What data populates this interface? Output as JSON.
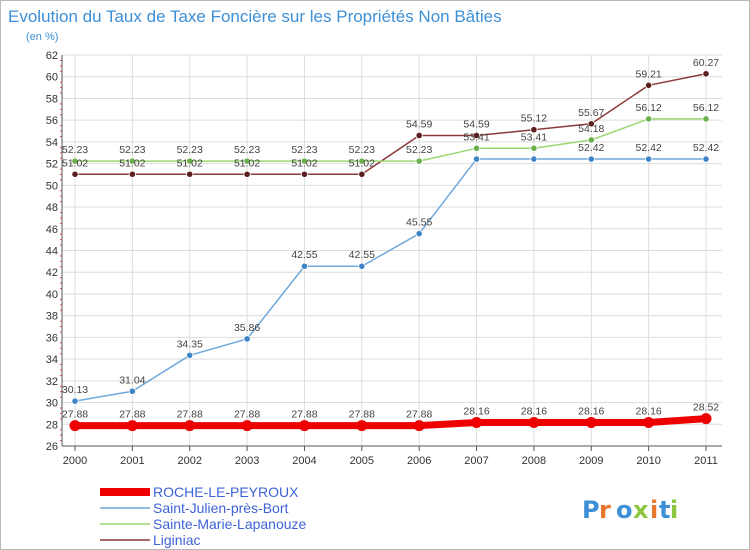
{
  "header": {
    "title": "Evolution du Taux de Taxe Foncière sur les Propriétés Non Bâties",
    "subtitle": "(en %)"
  },
  "logo": {
    "text": "Proxiti",
    "colors": [
      "#3d8fd6",
      "#e8762b",
      "#3d8fd6",
      "#8cc63f",
      "#e8762b",
      "#3d8fd6",
      "#8cc63f"
    ]
  },
  "chart_data": {
    "type": "line",
    "title": "Evolution du Taux de Taxe Foncière sur les Propriétés Non Bâties",
    "subtitle": "(en %)",
    "x": [
      "2000",
      "2001",
      "2002",
      "2003",
      "2004",
      "2005",
      "2006",
      "2007",
      "2008",
      "2009",
      "2010",
      "2011"
    ],
    "ylim": [
      26,
      62
    ],
    "yticks": [
      26,
      28,
      30,
      32,
      34,
      36,
      38,
      40,
      42,
      44,
      46,
      48,
      50,
      52,
      54,
      56,
      58,
      60,
      62
    ],
    "grid": true,
    "legend_position": "bottom-left",
    "series": [
      {
        "name": "ROCHE-LE-PEYROUX",
        "color": "#ee0000",
        "values": [
          27.88,
          27.88,
          27.88,
          27.88,
          27.88,
          27.88,
          27.88,
          28.16,
          28.16,
          28.16,
          28.16,
          28.52
        ],
        "labels": [
          "27.88",
          "27.88",
          "27.88",
          "27.88",
          "27.88",
          "27.88",
          "27.88",
          "28.16",
          "28.16",
          "28.16",
          "28.16",
          "28.52"
        ]
      },
      {
        "name": "Saint-Julien-près-Bort",
        "color": "#6fa8dc",
        "marker_color": "#3d85c6",
        "values": [
          30.13,
          31.04,
          34.35,
          35.86,
          42.55,
          42.55,
          45.55,
          52.42,
          52.42,
          52.42,
          52.42,
          52.42
        ],
        "labels": [
          "30.13",
          "31.04",
          "34.35",
          "35.86",
          "42.55",
          "42.55",
          "45.55",
          "",
          "",
          "52.42",
          "52.42",
          "52.42"
        ]
      },
      {
        "name": "Sainte-Marie-Lapanouze",
        "color": "#9ad66e",
        "marker_color": "#6ab04c",
        "values": [
          52.23,
          52.23,
          52.23,
          52.23,
          52.23,
          52.23,
          52.23,
          53.41,
          53.41,
          54.18,
          56.12,
          56.12
        ],
        "labels": [
          "52.23",
          "52.23",
          "52.23",
          "52.23",
          "52.23",
          "52.23",
          "52.23",
          "53.41",
          "53.41",
          "54.18",
          "56.12",
          "56.12"
        ]
      },
      {
        "name": "Liginiac",
        "color": "#8b3a3a",
        "marker_color": "#5c1f1f",
        "values": [
          51.02,
          51.02,
          51.02,
          51.02,
          51.02,
          51.02,
          54.59,
          54.59,
          55.12,
          55.67,
          59.21,
          60.27
        ],
        "labels": [
          "51.02",
          "51.02",
          "51.02",
          "51.02",
          "51.02",
          "51.02",
          "54.59",
          "54.59",
          "55.12",
          "55.67",
          "59.21",
          "60.27"
        ]
      }
    ]
  }
}
